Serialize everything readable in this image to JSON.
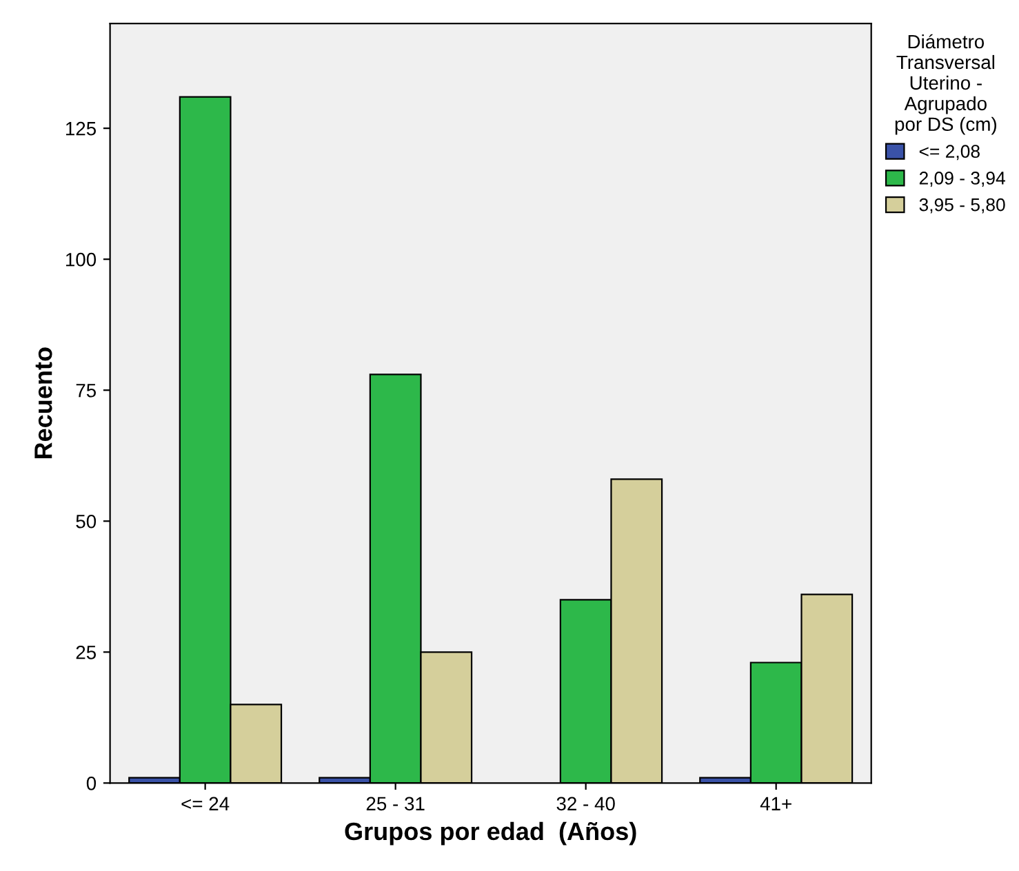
{
  "chart_data": {
    "type": "bar",
    "xlabel": "Grupos por edad  (Años)",
    "ylabel": "Recuento",
    "legend_title": "Diámetro\nTransversal\nUterino -\nAgrupado\npor DS (cm)",
    "categories": [
      "<= 24",
      "25 - 31",
      "32 - 40",
      "41+"
    ],
    "series": [
      {
        "name": "<= 2,08",
        "color": "#3a52a8",
        "values": [
          1,
          1,
          null,
          1
        ]
      },
      {
        "name": "2,09 - 3,94",
        "color": "#2db84a",
        "values": [
          131,
          78,
          35,
          23
        ]
      },
      {
        "name": "3,95 - 5,80",
        "color": "#d5cf9b",
        "values": [
          15,
          25,
          58,
          36
        ]
      }
    ],
    "ylim": [
      0,
      145
    ],
    "yticks": [
      0,
      25,
      50,
      75,
      100,
      125
    ],
    "grid": false,
    "legend": "right"
  }
}
